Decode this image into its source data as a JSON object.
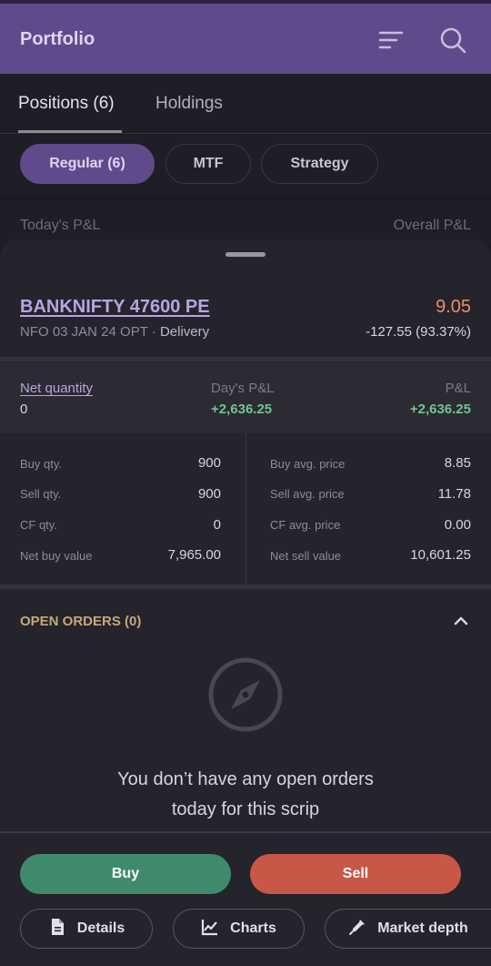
{
  "header": {
    "title": "Portfolio"
  },
  "tabs": {
    "positions": "Positions (6)",
    "holdings": "Holdings"
  },
  "chips": {
    "regular": "Regular (6)",
    "mtf": "MTF",
    "strategy": "Strategy"
  },
  "pl_header": {
    "today": "Today's P&L",
    "overall": "Overall P&L"
  },
  "position": {
    "symbol": "BANKNIFTY 47600 PE",
    "ltp": "9.05",
    "segment": "NFO 03 JAN 24  OPT",
    "separator": "·",
    "product": "Delivery",
    "change": "-127.55 (93.37%)"
  },
  "pnl": {
    "net_qty_label": "Net quantity",
    "net_qty_value": "0",
    "days_pnl_label": "Day's P&L",
    "days_pnl_value": "+2,636.25",
    "pnl_label": "P&L",
    "pnl_value": "+2,636.25"
  },
  "stats_left": [
    {
      "label": "Buy qty.",
      "value": "900"
    },
    {
      "label": "Sell qty.",
      "value": "900"
    },
    {
      "label": "CF qty.",
      "value": "0"
    },
    {
      "label": "Net buy value",
      "value": "7,965.00"
    }
  ],
  "stats_right": [
    {
      "label": "Buy avg. price",
      "value": "8.85"
    },
    {
      "label": "Sell avg. price",
      "value": "11.78"
    },
    {
      "label": "CF avg. price",
      "value": "0.00"
    },
    {
      "label": "Net sell value",
      "value": "10,601.25"
    }
  ],
  "open_orders": {
    "title": "OPEN ORDERS (0)",
    "empty_line1": "You don’t have any open orders",
    "empty_line2": "today for this scrip"
  },
  "actions": {
    "buy": "Buy",
    "sell": "Sell",
    "details": "Details",
    "charts": "Charts",
    "market_depth": "Market depth"
  },
  "colors": {
    "accent": "#5f4b8b",
    "profit": "#6ec593",
    "loss": "#f08c6b",
    "buy": "#3f8a6d",
    "sell": "#c95747"
  }
}
